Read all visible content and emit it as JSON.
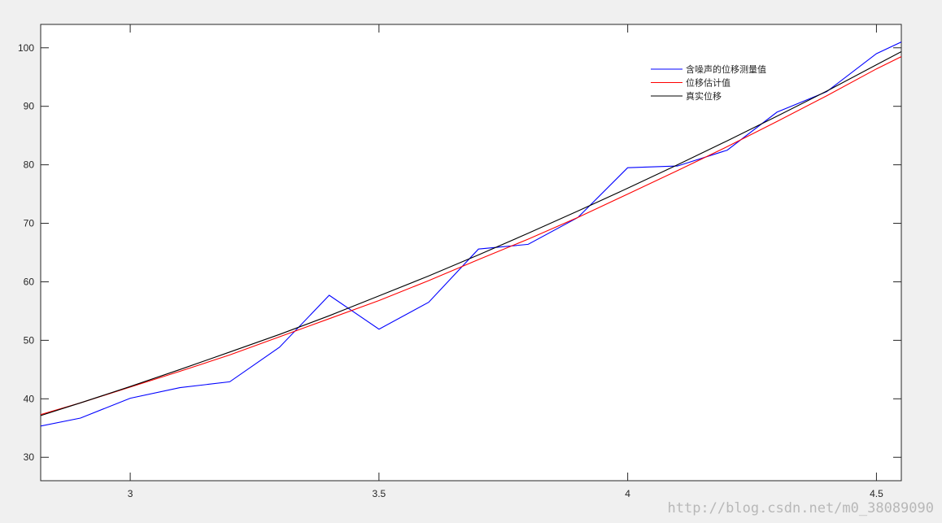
{
  "chart_data": {
    "type": "line",
    "xlim": [
      2.82,
      4.55
    ],
    "ylim": [
      26,
      104
    ],
    "xticks": [
      3,
      3.5,
      4,
      4.5
    ],
    "xtick_labels": [
      "3",
      "3.5",
      "4",
      "4.5"
    ],
    "yticks": [
      30,
      40,
      50,
      60,
      70,
      80,
      90,
      100
    ],
    "ytick_labels": [
      "30",
      "40",
      "50",
      "60",
      "70",
      "80",
      "90",
      "100"
    ],
    "grid": false,
    "legend_position": "top-right",
    "series": [
      {
        "name": "含噪声的位移测量值",
        "color": "#0000ff",
        "x": [
          2.8,
          2.9,
          3.0,
          3.1,
          3.2,
          3.3,
          3.4,
          3.5,
          3.6,
          3.7,
          3.8,
          3.9,
          4.0,
          4.1,
          4.2,
          4.3,
          4.4,
          4.5,
          4.6
        ],
        "y": [
          35.0,
          36.7,
          40.1,
          41.9,
          42.9,
          48.8,
          57.7,
          51.9,
          56.5,
          65.6,
          66.4,
          71.0,
          79.5,
          79.8,
          82.5,
          89.0,
          92.5,
          99.0,
          103.0
        ]
      },
      {
        "name": "位移估计值",
        "color": "#ff0000",
        "x": [
          2.8,
          2.9,
          3.0,
          3.1,
          3.2,
          3.3,
          3.4,
          3.5,
          3.6,
          3.7,
          3.8,
          3.9,
          4.0,
          4.1,
          4.2,
          4.3,
          4.4,
          4.5,
          4.6
        ],
        "y": [
          36.8,
          39.3,
          42.0,
          44.7,
          47.5,
          50.6,
          53.7,
          56.8,
          60.2,
          63.8,
          67.3,
          71.0,
          75.0,
          79.0,
          83.1,
          87.4,
          91.8,
          96.4,
          100.6
        ]
      },
      {
        "name": "真实位移",
        "color": "#000000",
        "x": [
          2.8,
          2.9,
          3.0,
          3.1,
          3.2,
          3.3,
          3.4,
          3.5,
          3.6,
          3.7,
          3.8,
          3.9,
          4.0,
          4.1,
          4.2,
          4.3,
          4.4,
          4.5,
          4.6
        ],
        "y": [
          36.6,
          39.3,
          42.1,
          45.0,
          48.0,
          51.0,
          54.2,
          57.6,
          61.0,
          64.6,
          68.3,
          72.1,
          76.0,
          80.0,
          84.1,
          88.3,
          92.6,
          97.1,
          101.6
        ]
      }
    ]
  },
  "watermark": "http://blog.csdn.net/m0_38089090"
}
